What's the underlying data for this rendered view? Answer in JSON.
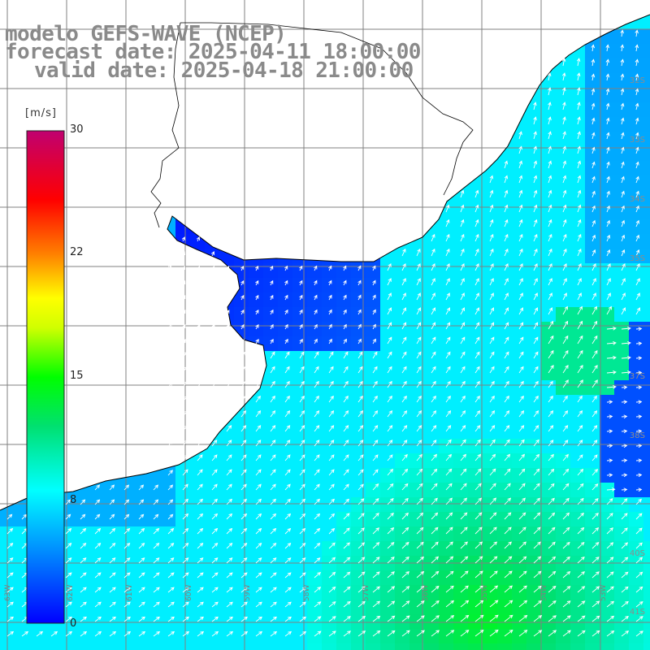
{
  "title": {
    "line1": "modelo GEFS-WAVE (NCEP)",
    "line2": "forecast date: 2025-04-11 18:00:00",
    "line3": "valid date: 2025-04-18 21:00:00"
  },
  "colorbar": {
    "unit": "[m/s]",
    "ticks": [
      "30",
      "22",
      "15",
      "8",
      "0"
    ],
    "range": [
      0,
      30
    ],
    "colors": [
      "#0000ff",
      "#00bfff",
      "#00ffff",
      "#00ff00",
      "#ffff00",
      "#ff8000",
      "#ff0000",
      "#c00070"
    ]
  },
  "lat_labels": [
    "32S",
    "33S",
    "34S",
    "35S",
    "37S",
    "38S",
    "40S",
    "41S"
  ],
  "lon_labels": [
    "63W",
    "62W",
    "61W",
    "60W",
    "59W",
    "58W",
    "57W",
    "56W",
    "55W",
    "54W",
    "53W"
  ],
  "map": {
    "variable": "wind speed",
    "land_color": "#ffffff",
    "grid_color": "#888888",
    "coast_color": "#000000",
    "arrow_color": "#ffffff"
  }
}
